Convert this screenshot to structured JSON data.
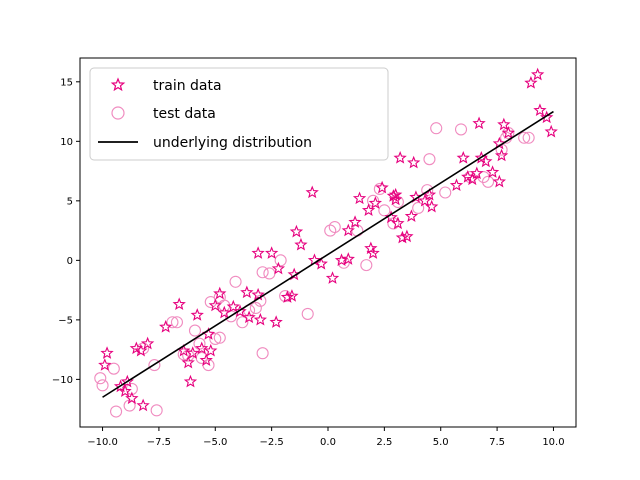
{
  "chart_data": {
    "type": "scatter",
    "title": "",
    "xlabel": "",
    "ylabel": "",
    "xlim": [
      -11,
      11
    ],
    "ylim": [
      -14,
      17
    ],
    "xticks": [
      -10.0,
      -7.5,
      -5.0,
      -2.5,
      0.0,
      2.5,
      5.0,
      7.5,
      10.0
    ],
    "xtick_labels": [
      "−10.0",
      "−7.5",
      "−5.0",
      "−2.5",
      "0.0",
      "2.5",
      "5.0",
      "7.5",
      "10.0"
    ],
    "yticks": [
      -10,
      -5,
      0,
      5,
      10,
      15
    ],
    "ytick_labels": [
      "−10",
      "−5",
      "0",
      "5",
      "10",
      "15"
    ],
    "grid": false,
    "legend_position": "top-left",
    "series": [
      {
        "name": "train data",
        "marker": "star",
        "color": "#e6007e",
        "points": [
          [
            -9.8,
            -7.8
          ],
          [
            -9.9,
            -8.8
          ],
          [
            -9.2,
            -10.6
          ],
          [
            -8.9,
            -10.2
          ],
          [
            -9.0,
            -11.0
          ],
          [
            -8.7,
            -11.6
          ],
          [
            -8.5,
            -7.4
          ],
          [
            -8.3,
            -7.6
          ],
          [
            -8.0,
            -7.0
          ],
          [
            -8.2,
            -12.2
          ],
          [
            -7.2,
            -5.6
          ],
          [
            -6.6,
            -3.7
          ],
          [
            -6.4,
            -7.6
          ],
          [
            -6.2,
            -8.6
          ],
          [
            -6.1,
            -10.2
          ],
          [
            -6.0,
            -7.8
          ],
          [
            -5.8,
            -4.6
          ],
          [
            -5.6,
            -7.4
          ],
          [
            -5.4,
            -8.4
          ],
          [
            -5.2,
            -7.6
          ],
          [
            -5.3,
            -6.2
          ],
          [
            -5.0,
            -3.8
          ],
          [
            -4.8,
            -2.8
          ],
          [
            -4.6,
            -4.4
          ],
          [
            -4.2,
            -3.9
          ],
          [
            -3.9,
            -4.3
          ],
          [
            -3.6,
            -2.7
          ],
          [
            -3.5,
            -4.8
          ],
          [
            -3.1,
            -2.9
          ],
          [
            -3.0,
            -5.0
          ],
          [
            -3.1,
            0.6
          ],
          [
            -2.5,
            0.6
          ],
          [
            -2.3,
            -5.2
          ],
          [
            -2.2,
            -0.7
          ],
          [
            -1.8,
            -3.1
          ],
          [
            -1.6,
            -3.0
          ],
          [
            -1.5,
            -1.2
          ],
          [
            -1.4,
            2.4
          ],
          [
            -1.2,
            1.3
          ],
          [
            -0.7,
            5.7
          ],
          [
            -0.6,
            0.0
          ],
          [
            -0.3,
            -0.3
          ],
          [
            0.2,
            -1.5
          ],
          [
            0.6,
            0.0
          ],
          [
            0.9,
            0.1
          ],
          [
            0.9,
            2.5
          ],
          [
            1.2,
            3.2
          ],
          [
            1.4,
            5.2
          ],
          [
            1.8,
            4.2
          ],
          [
            1.9,
            1.0
          ],
          [
            2.0,
            0.6
          ],
          [
            2.1,
            4.8
          ],
          [
            2.4,
            6.1
          ],
          [
            2.8,
            3.6
          ],
          [
            2.9,
            5.4
          ],
          [
            3.0,
            5.1
          ],
          [
            3.0,
            5.5
          ],
          [
            3.1,
            3.1
          ],
          [
            3.2,
            8.6
          ],
          [
            3.3,
            1.9
          ],
          [
            3.5,
            2.0
          ],
          [
            3.7,
            3.7
          ],
          [
            3.8,
            8.2
          ],
          [
            3.9,
            5.3
          ],
          [
            4.3,
            5.0
          ],
          [
            4.5,
            5.5
          ],
          [
            4.6,
            4.5
          ],
          [
            5.7,
            6.3
          ],
          [
            6.0,
            8.6
          ],
          [
            6.2,
            7.0
          ],
          [
            6.4,
            6.8
          ],
          [
            6.6,
            7.3
          ],
          [
            6.7,
            11.5
          ],
          [
            6.8,
            8.6
          ],
          [
            7.0,
            8.3
          ],
          [
            7.3,
            7.4
          ],
          [
            7.6,
            6.6
          ],
          [
            7.6,
            9.8
          ],
          [
            7.7,
            8.8
          ],
          [
            7.8,
            11.4
          ],
          [
            8.0,
            10.7
          ],
          [
            9.0,
            14.9
          ],
          [
            9.3,
            15.6
          ],
          [
            9.4,
            12.6
          ],
          [
            9.7,
            12.0
          ],
          [
            9.9,
            10.8
          ]
        ]
      },
      {
        "name": "test data",
        "marker": "circle",
        "color": "#f08cc0",
        "points": [
          [
            -10.1,
            -9.9
          ],
          [
            -10.0,
            -10.5
          ],
          [
            -9.5,
            -9.1
          ],
          [
            -9.4,
            -12.7
          ],
          [
            -8.8,
            -12.2
          ],
          [
            -8.7,
            -10.8
          ],
          [
            -8.2,
            -7.4
          ],
          [
            -7.7,
            -8.8
          ],
          [
            -7.6,
            -12.6
          ],
          [
            -6.9,
            -5.2
          ],
          [
            -6.7,
            -5.2
          ],
          [
            -6.4,
            -7.9
          ],
          [
            -6.2,
            -8.0
          ],
          [
            -5.9,
            -5.9
          ],
          [
            -5.7,
            -7.0
          ],
          [
            -5.6,
            -8.2
          ],
          [
            -5.3,
            -8.8
          ],
          [
            -5.2,
            -3.5
          ],
          [
            -5.0,
            -6.6
          ],
          [
            -4.8,
            -6.5
          ],
          [
            -4.8,
            -3.1
          ],
          [
            -4.6,
            -3.8
          ],
          [
            -4.3,
            -4.7
          ],
          [
            -4.1,
            -1.8
          ],
          [
            -3.8,
            -5.2
          ],
          [
            -3.5,
            -4.2
          ],
          [
            -3.2,
            -4.0
          ],
          [
            -3.0,
            -3.4
          ],
          [
            -2.9,
            -1.0
          ],
          [
            -2.9,
            -7.8
          ],
          [
            -2.6,
            -1.1
          ],
          [
            -2.1,
            0.0
          ],
          [
            -1.9,
            -3.0
          ],
          [
            -0.9,
            -4.5
          ],
          [
            0.1,
            2.5
          ],
          [
            0.3,
            2.8
          ],
          [
            0.7,
            -0.2
          ],
          [
            1.3,
            2.5
          ],
          [
            1.7,
            -0.4
          ],
          [
            2.0,
            5.0
          ],
          [
            2.3,
            6.0
          ],
          [
            2.5,
            4.2
          ],
          [
            2.9,
            3.1
          ],
          [
            3.1,
            4.9
          ],
          [
            4.0,
            4.4
          ],
          [
            4.4,
            5.9
          ],
          [
            4.5,
            8.5
          ],
          [
            4.8,
            11.1
          ],
          [
            5.2,
            5.7
          ],
          [
            5.9,
            11.0
          ],
          [
            6.3,
            7.0
          ],
          [
            6.9,
            7.0
          ],
          [
            7.1,
            6.6
          ],
          [
            7.7,
            9.3
          ],
          [
            7.9,
            10.3
          ],
          [
            8.0,
            10.7
          ],
          [
            8.7,
            10.3
          ],
          [
            8.9,
            10.3
          ]
        ]
      },
      {
        "name": "underlying distribution",
        "marker": "line",
        "color": "#000000",
        "points": [
          [
            -10.0,
            -11.5
          ],
          [
            10.0,
            12.5
          ]
        ]
      }
    ]
  }
}
